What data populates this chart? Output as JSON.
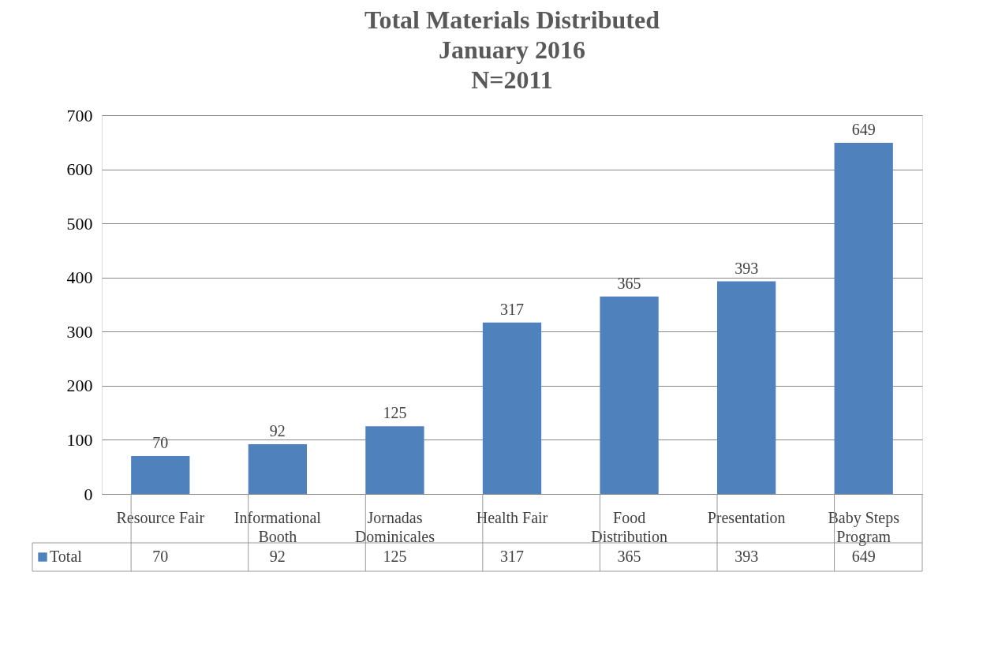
{
  "chart_data": {
    "type": "bar",
    "title": [
      "Total Materials Distributed",
      "January 2016",
      "N=2011"
    ],
    "categories": [
      "Resource Fair",
      "Informational Booth",
      "Jornadas Dominicales",
      "Health Fair",
      "Food Distribution",
      "Presentation",
      "Baby Steps Program"
    ],
    "series": [
      {
        "name": "Total",
        "color": "#4f81bd",
        "values": [
          70,
          92,
          125,
          317,
          365,
          393,
          649
        ],
        "value_labels": [
          "70",
          "92",
          "125",
          "317",
          "365",
          "393",
          "649"
        ]
      }
    ],
    "ylim": [
      0,
      700
    ],
    "yticks": [
      0,
      100,
      200,
      300,
      400,
      500,
      600,
      700
    ],
    "grid": "y",
    "annotations": [
      "70",
      "92",
      "125",
      "317",
      "365",
      "393",
      "649"
    ]
  }
}
